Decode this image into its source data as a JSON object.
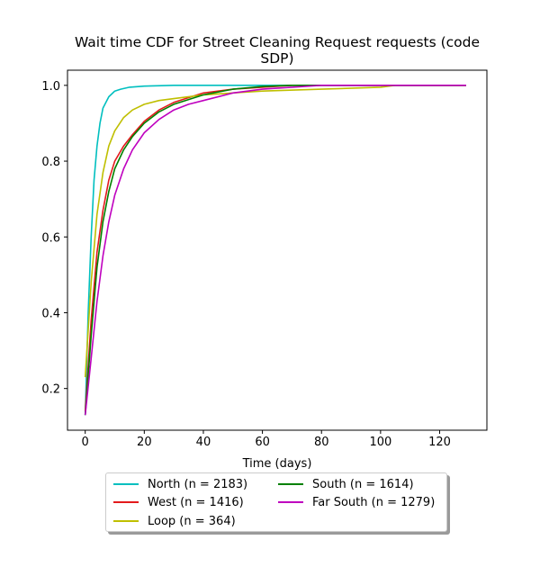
{
  "chart_data": {
    "type": "line",
    "title_line1": "Wait time CDF for Street Cleaning Request  requests (code",
    "title_line2": "SDP)",
    "xlabel": "Time (days)",
    "ylabel": "",
    "xlim": [
      -6,
      136
    ],
    "ylim": [
      0.09,
      1.04
    ],
    "xticks": [
      0,
      20,
      40,
      60,
      80,
      100,
      120
    ],
    "yticks": [
      0.2,
      0.4,
      0.6,
      0.8,
      1.0
    ],
    "ytick_labels": [
      "0.2",
      "0.4",
      "0.6",
      "0.8",
      "1.0"
    ],
    "grid": false,
    "legend_placement": "below plot, two columns",
    "series": [
      {
        "name": "North (n = 2183)",
        "color": "#00bfbf",
        "x": [
          0,
          1,
          2,
          3,
          4,
          5,
          6,
          8,
          10,
          12,
          15,
          20,
          30,
          40,
          129
        ],
        "y": [
          0.13,
          0.4,
          0.6,
          0.75,
          0.84,
          0.9,
          0.94,
          0.97,
          0.985,
          0.99,
          0.995,
          0.998,
          1.0,
          1.0,
          1.0
        ]
      },
      {
        "name": "West (n = 1416)",
        "color": "#e31a1c",
        "x": [
          0,
          2,
          4,
          6,
          8,
          10,
          13,
          16,
          20,
          25,
          30,
          40,
          50,
          60,
          70,
          129
        ],
        "y": [
          0.14,
          0.38,
          0.56,
          0.67,
          0.75,
          0.8,
          0.84,
          0.87,
          0.905,
          0.935,
          0.955,
          0.98,
          0.99,
          0.995,
          1.0,
          1.0
        ]
      },
      {
        "name": "Loop (n = 364)",
        "color": "#bfbf00",
        "x": [
          0,
          2,
          4,
          6,
          8,
          10,
          13,
          16,
          20,
          25,
          30,
          40,
          60,
          80,
          100,
          105,
          129
        ],
        "y": [
          0.23,
          0.48,
          0.66,
          0.77,
          0.84,
          0.88,
          0.915,
          0.935,
          0.95,
          0.96,
          0.965,
          0.975,
          0.985,
          0.99,
          0.995,
          1.0,
          1.0
        ]
      },
      {
        "name": "South (n = 1614)",
        "color": "#008000",
        "x": [
          0,
          2,
          4,
          6,
          8,
          10,
          13,
          16,
          20,
          25,
          30,
          40,
          50,
          60,
          70,
          129
        ],
        "y": [
          0.13,
          0.34,
          0.52,
          0.64,
          0.72,
          0.78,
          0.83,
          0.865,
          0.9,
          0.93,
          0.95,
          0.975,
          0.99,
          0.997,
          1.0,
          1.0
        ]
      },
      {
        "name": "Far South (n = 1279)",
        "color": "#bf00bf",
        "x": [
          0,
          2,
          4,
          6,
          8,
          10,
          13,
          16,
          20,
          25,
          30,
          35,
          40,
          50,
          60,
          70,
          80,
          129
        ],
        "y": [
          0.13,
          0.28,
          0.43,
          0.55,
          0.64,
          0.71,
          0.78,
          0.83,
          0.875,
          0.91,
          0.935,
          0.95,
          0.96,
          0.98,
          0.99,
          0.995,
          1.0,
          1.0
        ]
      }
    ]
  }
}
